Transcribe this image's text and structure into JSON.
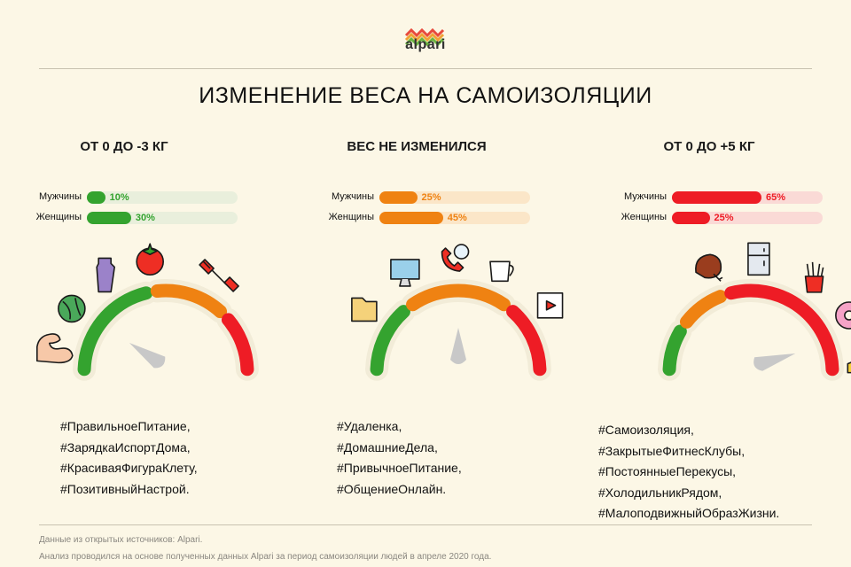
{
  "brand": {
    "name": "alpari"
  },
  "title": "ИЗМЕНЕНИЕ ВЕСА НА САМОИЗОЛЯЦИИ",
  "colors": {
    "green": "#34a32f",
    "orange": "#ef8212",
    "red": "#ee1c25",
    "needle": "#c8c8c8"
  },
  "chart_data": [
    {
      "type": "bar",
      "title": "ОТ 0 ДО -3 КГ",
      "categories": [
        "Мужчины",
        "Женщины"
      ],
      "values": [
        10,
        30
      ],
      "value_labels": [
        "10%",
        "30%"
      ],
      "ylim": [
        0,
        100
      ],
      "gauge_position": "green",
      "hashtags": [
        "#ПравильноеПитание,",
        "#ЗарядкаИспортДома,",
        "#КрасиваяФигураКлету,",
        "#ПозитивныйНастрой."
      ],
      "icons": [
        "bicep-icon",
        "cabbage-icon",
        "water-bottle-icon",
        "tomato-icon",
        "dumbbell-icon"
      ]
    },
    {
      "type": "bar",
      "title": "ВЕС НЕ ИЗМЕНИЛСЯ",
      "categories": [
        "Мужчины",
        "Женщины"
      ],
      "values": [
        25,
        45
      ],
      "value_labels": [
        "25%",
        "45%"
      ],
      "ylim": [
        0,
        100
      ],
      "gauge_position": "orange",
      "hashtags": [
        "#Удаленка,",
        "#ДомашниеДела,",
        "#ПривычноеПитание,",
        "#ОбщениеОнлайн."
      ],
      "icons": [
        "folder-icon",
        "computer-icon",
        "phone-chat-icon",
        "coffee-cup-icon",
        "video-player-icon"
      ]
    },
    {
      "type": "bar",
      "title": "ОТ 0 ДО +5 КГ",
      "categories": [
        "Мужчины",
        "Женщины"
      ],
      "values": [
        65,
        25
      ],
      "value_labels": [
        "65%",
        "25%"
      ],
      "ylim": [
        0,
        100
      ],
      "gauge_position": "red",
      "hashtags": [
        "#Самоизоляция,",
        "#ЗакрытыеФитнесКлубы,",
        "#ПостоянныеПерекусы,",
        "#ХолодильникРядом,",
        "#МалоподвижныйОбразЖизни."
      ],
      "icons": [
        "chicken-leg-icon",
        "fridge-icon",
        "fries-icon",
        "donut-icon",
        "cheese-icon"
      ]
    }
  ],
  "footer": {
    "source": "Данные из открытых источников: Alpari.",
    "note": "Анализ проводился на основе полученных данных Alpari за период самоизоляции людей в апреле 2020 года."
  }
}
